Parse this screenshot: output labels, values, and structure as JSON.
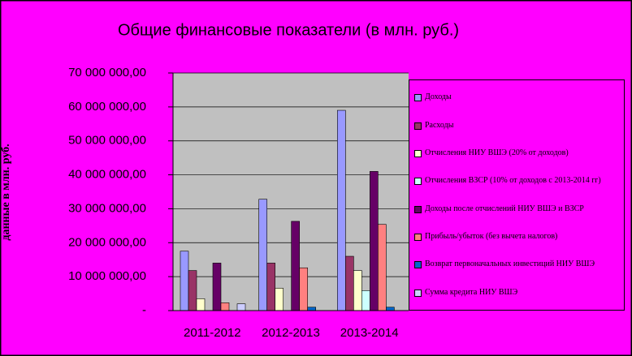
{
  "chart_data": {
    "type": "bar",
    "title": "Общие финансовые показатели (в млн. руб.)",
    "y_label": "данные в млн. руб.",
    "categories": [
      "2011-2012",
      "2012-2013",
      "2013-2014"
    ],
    "ylim": [
      0,
      70000000
    ],
    "yticks": [
      {
        "value": 0,
        "label": "-"
      },
      {
        "value": 10000000,
        "label": "10 000 000,00"
      },
      {
        "value": 20000000,
        "label": "20 000 000,00"
      },
      {
        "value": 30000000,
        "label": "30 000 000,00"
      },
      {
        "value": 40000000,
        "label": "40 000 000,00"
      },
      {
        "value": 50000000,
        "label": "50 000 000,00"
      },
      {
        "value": 60000000,
        "label": "60 000 000,00"
      },
      {
        "value": 70000000,
        "label": "70 000 000,00"
      }
    ],
    "series": [
      {
        "name": "Доходы",
        "color": "#9999ff",
        "values": [
          17500000,
          32800000,
          59000000
        ]
      },
      {
        "name": "Расходы",
        "color": "#993366",
        "values": [
          11800000,
          14000000,
          16000000
        ]
      },
      {
        "name": "Отчисления НИУ ВШЭ (20% от доходов)",
        "color": "#ffffcc",
        "values": [
          3500000,
          6600000,
          11800000
        ]
      },
      {
        "name": "Отчисления ВЗСР (10% от доходов с 2013-2014 гг)",
        "color": "#ccffff",
        "values": [
          0,
          0,
          5900000
        ]
      },
      {
        "name": "Доходы после отчислений НИУ ВШЭ и ВЗСР",
        "color": "#660066",
        "values": [
          14000000,
          26300000,
          41000000
        ]
      },
      {
        "name": "Прибыль/убыток (без вычета налогов)",
        "color": "#ff8080",
        "values": [
          2300000,
          12600000,
          25400000
        ]
      },
      {
        "name": "Возврат первоначальных инвестиций НИУ ВШЭ",
        "color": "#0066cc",
        "values": [
          0,
          1000000,
          1000000
        ]
      },
      {
        "name": "Сумма кредита НИУ ВШЭ",
        "color": "#ccccff",
        "values": [
          2000000,
          0,
          0
        ]
      }
    ]
  }
}
